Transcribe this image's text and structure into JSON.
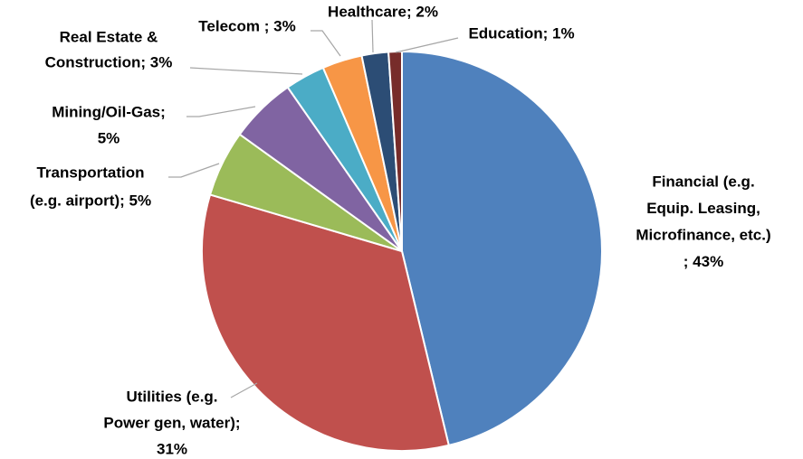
{
  "chart_data": {
    "type": "pie",
    "labels": [
      [
        "Financial (e.g.",
        "Equip. Leasing,",
        "Microfinance, etc.)",
        "; 43%"
      ],
      [
        "Utilities (e.g.",
        "Power gen, water);",
        "31%"
      ],
      [
        "Transportation",
        "(e.g. airport); 5%"
      ],
      [
        "Mining/Oil-Gas;",
        "5%"
      ],
      [
        "Real Estate &",
        "Construction; 3%"
      ],
      [
        "Telecom ; 3%"
      ],
      [
        "Healthcare; 2%"
      ],
      [
        "Education; 1%"
      ]
    ],
    "values": [
      43,
      31,
      5,
      5,
      3,
      3,
      2,
      1
    ],
    "colors": [
      "#4f81bd",
      "#c0504d",
      "#9bbb59",
      "#8064a2",
      "#4bacc6",
      "#f79646",
      "#2c4d75",
      "#772c2a"
    ]
  }
}
